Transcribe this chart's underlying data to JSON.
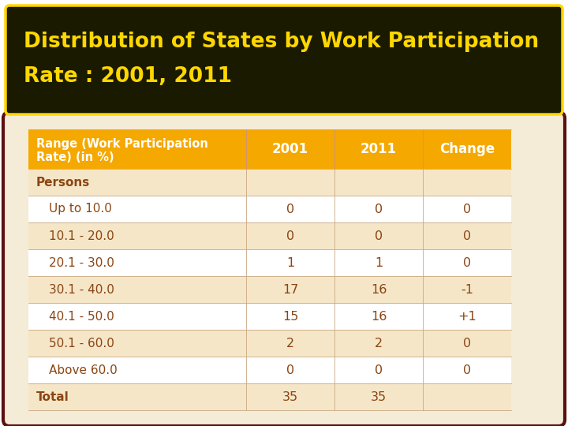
{
  "title_line1": "Distribution of States by Work Participation",
  "title_line2": "Rate : 2001, 2011",
  "title_text_color": "#FFD700",
  "title_bg_color": "#1a1a00",
  "title_border_color": "#FFD700",
  "table_border_color": "#5C1010",
  "header_bg": "#F5A800",
  "header_text_color": "#FFFFFF",
  "row_text_color": "#8B4513",
  "col_headers": [
    "2001",
    "2011",
    "Change"
  ],
  "row_bgs": [
    "#F5E6C8",
    "#FFFFFF",
    "#F5E6C8",
    "#FFFFFF",
    "#F5E6C8",
    "#FFFFFF",
    "#F5E6C8",
    "#FFFFFF",
    "#F5E6C8"
  ],
  "rows": [
    {
      "label": "Persons",
      "values": [
        "",
        "",
        ""
      ],
      "bold": true,
      "indent": false
    },
    {
      "label": "Up to 10.0",
      "values": [
        "0",
        "0",
        "0"
      ],
      "bold": false,
      "indent": true
    },
    {
      "label": "10.1 - 20.0",
      "values": [
        "0",
        "0",
        "0"
      ],
      "bold": false,
      "indent": true
    },
    {
      "label": "20.1 - 30.0",
      "values": [
        "1",
        "1",
        "0"
      ],
      "bold": false,
      "indent": true
    },
    {
      "label": "30.1 - 40.0",
      "values": [
        "17",
        "16",
        "-1"
      ],
      "bold": false,
      "indent": true
    },
    {
      "label": "40.1 - 50.0",
      "values": [
        "15",
        "16",
        "+1"
      ],
      "bold": false,
      "indent": true
    },
    {
      "label": "50.1 - 60.0",
      "values": [
        "2",
        "2",
        "0"
      ],
      "bold": false,
      "indent": true
    },
    {
      "label": "Above 60.0",
      "values": [
        "0",
        "0",
        "0"
      ],
      "bold": false,
      "indent": true
    },
    {
      "label": "Total",
      "values": [
        "35",
        "35",
        ""
      ],
      "bold": true,
      "indent": false
    }
  ]
}
